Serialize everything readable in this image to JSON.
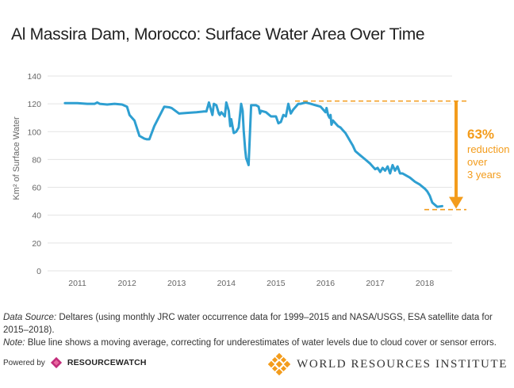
{
  "chart_data": {
    "type": "line",
    "title": "Al Massira Dam, Morocco: Surface Water Area Over Time",
    "ylabel": "Km² of Surface Water",
    "xlabel": "",
    "ylim": [
      0,
      140
    ],
    "xlim": [
      2010.4,
      2018.55
    ],
    "yticks": [
      0,
      20,
      40,
      60,
      80,
      100,
      120,
      140
    ],
    "xticks": [
      2011,
      2012,
      2013,
      2014,
      2015,
      2016,
      2017,
      2018
    ],
    "grid": true,
    "series": [
      {
        "color": "#2e9fd1",
        "x": [
          2010.75,
          2011.0,
          2011.2,
          2011.35,
          2011.4,
          2011.45,
          2011.6,
          2011.75,
          2011.9,
          2012.0,
          2012.05,
          2012.15,
          2012.25,
          2012.35,
          2012.4,
          2012.45,
          2012.55,
          2012.75,
          2012.85,
          2012.9,
          2013.05,
          2013.2,
          2013.4,
          2013.55,
          2013.6,
          2013.65,
          2013.68,
          2013.72,
          2013.75,
          2013.8,
          2013.85,
          2013.87,
          2013.9,
          2013.95,
          2013.97,
          2014.0,
          2014.05,
          2014.08,
          2014.1,
          2014.15,
          2014.2,
          2014.25,
          2014.3,
          2014.33,
          2014.35,
          2014.38,
          2014.4,
          2014.42,
          2014.45,
          2014.5,
          2014.6,
          2014.65,
          2014.68,
          2014.7,
          2014.75,
          2014.8,
          2014.9,
          2015.0,
          2015.05,
          2015.1,
          2015.15,
          2015.2,
          2015.25,
          2015.3,
          2015.35,
          2015.4,
          2015.45,
          2015.5,
          2015.6,
          2015.7,
          2015.8,
          2015.9,
          2016.0,
          2016.02,
          2016.05,
          2016.08,
          2016.1,
          2016.12,
          2016.15,
          2016.2,
          2016.25,
          2016.3,
          2016.35,
          2016.4,
          2016.45,
          2016.5,
          2016.55,
          2016.6,
          2016.7,
          2016.8,
          2016.9,
          2017.0,
          2017.05,
          2017.1,
          2017.15,
          2017.2,
          2017.25,
          2017.3,
          2017.35,
          2017.4,
          2017.45,
          2017.5,
          2017.55,
          2017.6,
          2017.7,
          2017.8,
          2017.9,
          2018.0,
          2018.05,
          2018.1,
          2018.15,
          2018.25,
          2018.35
        ],
        "values": [
          120.5,
          120.5,
          120,
          120,
          121,
          120,
          119.5,
          120,
          119.5,
          118,
          112,
          108,
          97,
          95,
          94.5,
          94.5,
          104,
          118,
          117.5,
          117,
          113,
          113.5,
          114,
          114.5,
          114.5,
          121,
          117,
          112,
          120,
          119,
          113,
          112,
          114,
          112,
          111,
          121,
          115,
          104,
          109,
          99,
          100,
          103,
          120,
          115,
          101,
          87,
          81,
          79,
          76,
          119,
          119,
          118,
          113,
          115,
          114.5,
          114,
          111,
          111,
          106,
          107,
          112,
          111,
          120,
          113,
          116,
          118,
          120,
          120,
          121,
          120,
          119,
          118,
          114,
          117,
          112,
          110,
          112,
          105,
          108,
          106,
          104,
          103,
          101,
          99,
          96,
          93,
          90,
          86,
          83,
          80,
          77,
          73,
          74,
          71,
          74,
          72,
          75,
          70,
          76,
          72,
          75,
          70,
          70,
          69,
          67,
          64,
          62,
          59,
          57,
          54,
          49,
          46,
          46.5
        ],
        "label": "moving average"
      }
    ],
    "annotation": {
      "percent": "63%",
      "line1": "reduction",
      "line2": "over",
      "line3": "3 years",
      "from_value": 122,
      "to_value": 44,
      "color": "#f39c1c"
    }
  },
  "notes": {
    "source_label": "Data Source:",
    "source_text": " Deltares (using monthly JRC water occurrence data for 1999–2015 and NASA/USGS, ESA satellite data for 2015–2018).",
    "note_label": "Note:",
    "note_text": " Blue line shows a moving average, correcting for underestimates of water levels due to cloud cover or sensor errors."
  },
  "footer": {
    "powered_by": "Powered by",
    "resourcewatch": "RESOURCEWATCH",
    "wri": "WORLD RESOURCES INSTITUTE",
    "rw_color": "#c32d7b",
    "wri_color": "#f39c1c"
  }
}
